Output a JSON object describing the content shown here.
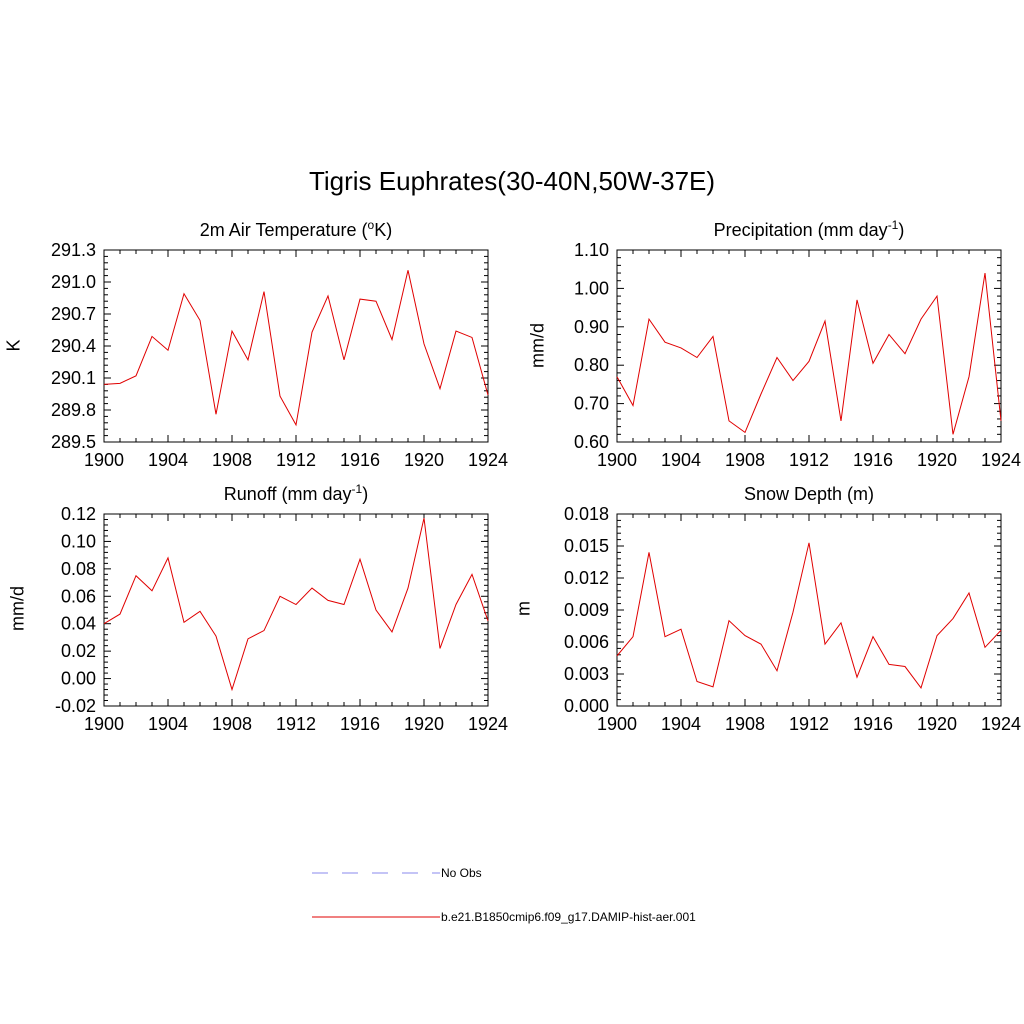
{
  "main_title": "Tigris Euphrates(30-40N,50W-37E)",
  "legend": [
    {
      "label": "No Obs",
      "color": "#a0a0f0",
      "dash": true
    },
    {
      "label": "b.e21.B1850cmip6.f09_g17.DAMIP-hist-aer.001",
      "color": "#e00000",
      "dash": false
    }
  ],
  "chart_data": [
    {
      "type": "line",
      "title_main": "2m Air Temperature (",
      "title_sup": "o",
      "title_tail": "K)",
      "ylabel": "K",
      "xlim": [
        1900,
        1924
      ],
      "ylim": [
        289.5,
        291.3
      ],
      "xticks": [
        1900,
        1904,
        1908,
        1912,
        1916,
        1920,
        1924
      ],
      "yticks": [
        "289.5",
        "289.8",
        "290.1",
        "290.4",
        "290.7",
        "291.0",
        "291.3"
      ],
      "color": "#e00000",
      "x": [
        1900,
        1901,
        1902,
        1903,
        1904,
        1905,
        1906,
        1907,
        1908,
        1909,
        1910,
        1911,
        1912,
        1913,
        1914,
        1915,
        1916,
        1917,
        1918,
        1919,
        1920,
        1921,
        1922,
        1923,
        1924
      ],
      "values": [
        290.04,
        290.05,
        290.12,
        290.49,
        290.36,
        290.89,
        290.64,
        289.76,
        290.54,
        290.27,
        290.91,
        289.93,
        289.66,
        290.53,
        290.87,
        290.27,
        290.84,
        290.82,
        290.46,
        291.11,
        290.42,
        290.0,
        290.54,
        290.48,
        289.94
      ]
    },
    {
      "type": "line",
      "title_main": "Precipitation (mm day",
      "title_sup": "-1",
      "title_tail": ")",
      "ylabel": "mm/d",
      "xlim": [
        1900,
        1924
      ],
      "ylim": [
        0.6,
        1.1
      ],
      "xticks": [
        1900,
        1904,
        1908,
        1912,
        1916,
        1920,
        1924
      ],
      "yticks": [
        "0.60",
        "0.70",
        "0.80",
        "0.90",
        "1.00",
        "1.10"
      ],
      "color": "#e00000",
      "x": [
        1900,
        1901,
        1902,
        1903,
        1904,
        1905,
        1906,
        1907,
        1908,
        1909,
        1910,
        1911,
        1912,
        1913,
        1914,
        1915,
        1916,
        1917,
        1918,
        1919,
        1920,
        1921,
        1922,
        1923,
        1924
      ],
      "values": [
        0.77,
        0.695,
        0.92,
        0.86,
        0.845,
        0.82,
        0.875,
        0.655,
        0.625,
        0.725,
        0.82,
        0.76,
        0.81,
        0.915,
        0.655,
        0.97,
        0.805,
        0.88,
        0.83,
        0.92,
        0.98,
        0.62,
        0.77,
        1.04,
        0.655
      ]
    },
    {
      "type": "line",
      "title_main": "Runoff (mm day",
      "title_sup": "-1",
      "title_tail": ")",
      "ylabel": "mm/d",
      "xlim": [
        1900,
        1924
      ],
      "ylim": [
        -0.02,
        0.12
      ],
      "xticks": [
        1900,
        1904,
        1908,
        1912,
        1916,
        1920,
        1924
      ],
      "yticks": [
        "-0.02",
        "0.00",
        "0.02",
        "0.04",
        "0.06",
        "0.08",
        "0.10",
        "0.12"
      ],
      "color": "#e00000",
      "x": [
        1900,
        1901,
        1902,
        1903,
        1904,
        1905,
        1906,
        1907,
        1908,
        1909,
        1910,
        1911,
        1912,
        1913,
        1914,
        1915,
        1916,
        1917,
        1918,
        1919,
        1920,
        1921,
        1922,
        1923,
        1924
      ],
      "values": [
        0.04,
        0.047,
        0.075,
        0.064,
        0.088,
        0.041,
        0.049,
        0.031,
        -0.008,
        0.029,
        0.035,
        0.06,
        0.054,
        0.066,
        0.057,
        0.054,
        0.087,
        0.05,
        0.034,
        0.066,
        0.117,
        0.022,
        0.054,
        0.076,
        0.042
      ]
    },
    {
      "type": "line",
      "title_main": "Snow Depth (m)",
      "title_sup": "",
      "title_tail": "",
      "ylabel": "m",
      "xlim": [
        1900,
        1924
      ],
      "ylim": [
        0.0,
        0.018
      ],
      "xticks": [
        1900,
        1904,
        1908,
        1912,
        1916,
        1920,
        1924
      ],
      "yticks": [
        "0.000",
        "0.003",
        "0.006",
        "0.009",
        "0.012",
        "0.015",
        "0.018"
      ],
      "color": "#e00000",
      "x": [
        1900,
        1901,
        1902,
        1903,
        1904,
        1905,
        1906,
        1907,
        1908,
        1909,
        1910,
        1911,
        1912,
        1913,
        1914,
        1915,
        1916,
        1917,
        1918,
        1919,
        1920,
        1921,
        1922,
        1923,
        1924
      ],
      "values": [
        0.0047,
        0.0065,
        0.0144,
        0.0065,
        0.0072,
        0.0023,
        0.0018,
        0.008,
        0.0066,
        0.0058,
        0.0033,
        0.0088,
        0.0153,
        0.0058,
        0.0078,
        0.0027,
        0.0065,
        0.0039,
        0.0037,
        0.0017,
        0.0066,
        0.0082,
        0.0106,
        0.0055,
        0.0071
      ]
    }
  ]
}
